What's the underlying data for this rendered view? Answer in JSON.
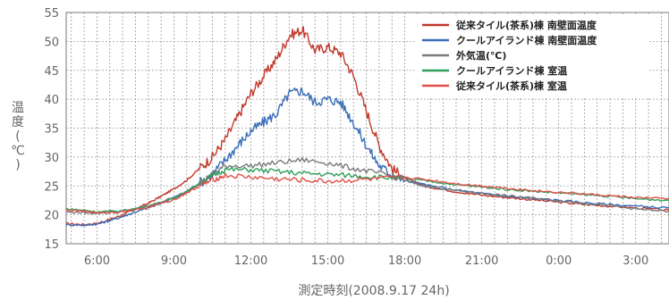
{
  "chart_data": {
    "type": "line",
    "xlabel": "測定時刻(2008.9.17 24h)",
    "ylabel_chars": [
      "温",
      "度",
      "(",
      "℃",
      ")"
    ],
    "ylim": [
      15,
      55
    ],
    "yticks": [
      15,
      20,
      25,
      30,
      35,
      40,
      45,
      50,
      55
    ],
    "xlim": [
      4.8,
      28.3
    ],
    "xticks": [
      {
        "v": 6,
        "label": "6:00"
      },
      {
        "v": 9,
        "label": "9:00"
      },
      {
        "v": 12,
        "label": "12:00"
      },
      {
        "v": 15,
        "label": "15:00"
      },
      {
        "v": 18,
        "label": "18:00"
      },
      {
        "v": 21,
        "label": "21:00"
      },
      {
        "v": 24,
        "label": "0:00"
      },
      {
        "v": 27,
        "label": "3:00"
      }
    ],
    "grid": true,
    "legend_position": "top-right",
    "series": [
      {
        "name": "従来タイル(茶系)棟 南壁面温度",
        "color": "#c0392b",
        "x": [
          4.8,
          5.5,
          6.0,
          6.5,
          7.0,
          7.5,
          8.0,
          8.5,
          9.0,
          9.5,
          10.0,
          10.5,
          11.0,
          11.5,
          12.0,
          12.5,
          13.0,
          13.5,
          14.0,
          14.5,
          15.0,
          15.5,
          16.0,
          16.5,
          17.0,
          17.5,
          18.0,
          18.5,
          19.0,
          20.0,
          21.0,
          22.0,
          23.0,
          24.0,
          25.0,
          26.0,
          27.0,
          28.3
        ],
        "y": [
          18.5,
          18.3,
          18.5,
          19.2,
          20.0,
          21.0,
          22.0,
          23.2,
          24.5,
          26.0,
          28.0,
          30.0,
          33.0,
          37.0,
          41.0,
          44.0,
          47.0,
          51.0,
          52.0,
          48.5,
          49.0,
          48.0,
          44.0,
          38.0,
          32.0,
          28.0,
          26.3,
          25.5,
          24.8,
          24.0,
          23.4,
          23.0,
          22.6,
          22.2,
          21.8,
          21.5,
          21.2,
          20.8
        ]
      },
      {
        "name": "クールアイランド棟 南壁面温度",
        "color": "#3a6fb8",
        "x": [
          4.8,
          5.5,
          6.0,
          6.5,
          7.0,
          7.5,
          8.0,
          8.5,
          9.0,
          9.5,
          10.0,
          10.5,
          11.0,
          11.5,
          12.0,
          12.5,
          13.0,
          13.5,
          14.0,
          14.5,
          15.0,
          15.5,
          16.0,
          16.5,
          17.0,
          17.5,
          18.0,
          18.5,
          19.0,
          20.0,
          21.0,
          22.0,
          23.0,
          24.0,
          25.0,
          26.0,
          27.0,
          28.3
        ],
        "y": [
          18.3,
          18.2,
          18.4,
          19.0,
          19.7,
          20.5,
          21.2,
          22.0,
          23.0,
          24.0,
          25.5,
          27.0,
          29.5,
          32.0,
          34.5,
          36.0,
          37.5,
          41.0,
          41.5,
          39.5,
          40.0,
          39.5,
          36.0,
          32.0,
          28.5,
          27.0,
          26.0,
          25.5,
          25.0,
          24.3,
          23.7,
          23.2,
          22.8,
          22.5,
          22.1,
          21.8,
          21.5,
          21.2
        ]
      },
      {
        "name": "外気温(℃)",
        "color": "#7a7a7a",
        "x": [
          4.8,
          5.5,
          6.0,
          7.0,
          8.0,
          9.0,
          9.5,
          10.0,
          10.5,
          11.0,
          12.0,
          13.0,
          14.0,
          15.0,
          16.0,
          17.0,
          18.0,
          18.5,
          19.0,
          20.0,
          21.0,
          22.0,
          23.0,
          24.0,
          25.0,
          26.0,
          27.0,
          28.3
        ],
        "y": [
          20.5,
          20.4,
          20.3,
          20.6,
          21.5,
          23.0,
          24.0,
          25.5,
          27.0,
          28.5,
          28.5,
          29.0,
          29.5,
          29.0,
          28.0,
          27.2,
          26.0,
          25.2,
          24.8,
          24.2,
          23.7,
          23.3,
          22.9,
          22.5,
          22.0,
          21.6,
          21.0,
          20.6
        ]
      },
      {
        "name": "クールアイランド棟 室温",
        "color": "#2e9e5b",
        "x": [
          4.8,
          5.5,
          6.0,
          7.0,
          8.0,
          9.0,
          9.5,
          10.0,
          10.5,
          11.0,
          12.0,
          13.0,
          14.0,
          15.0,
          16.0,
          17.0,
          18.0,
          19.0,
          20.0,
          21.0,
          22.0,
          23.0,
          24.0,
          25.0,
          26.0,
          27.0,
          28.3
        ],
        "y": [
          21.0,
          20.8,
          20.5,
          20.7,
          21.5,
          22.8,
          24.0,
          25.5,
          26.8,
          27.8,
          27.8,
          27.5,
          27.2,
          27.0,
          26.8,
          26.5,
          26.3,
          25.8,
          25.2,
          24.8,
          24.4,
          24.1,
          23.8,
          23.5,
          23.2,
          22.8,
          22.5
        ]
      },
      {
        "name": "従来タイル(茶系)棟 室温",
        "color": "#e0504a",
        "x": [
          4.8,
          5.5,
          6.0,
          7.0,
          8.0,
          9.0,
          9.5,
          10.0,
          10.5,
          11.0,
          12.0,
          13.0,
          14.0,
          15.0,
          16.0,
          17.0,
          18.0,
          19.0,
          20.0,
          21.0,
          22.0,
          23.0,
          24.0,
          25.0,
          26.0,
          27.0,
          28.3
        ],
        "y": [
          20.8,
          20.6,
          20.4,
          20.5,
          21.3,
          22.6,
          23.8,
          25.0,
          26.0,
          26.8,
          26.5,
          26.2,
          26.0,
          25.8,
          26.0,
          26.2,
          26.5,
          26.0,
          25.4,
          25.0,
          24.6,
          24.2,
          23.9,
          23.6,
          23.3,
          23.0,
          22.8
        ]
      }
    ]
  }
}
